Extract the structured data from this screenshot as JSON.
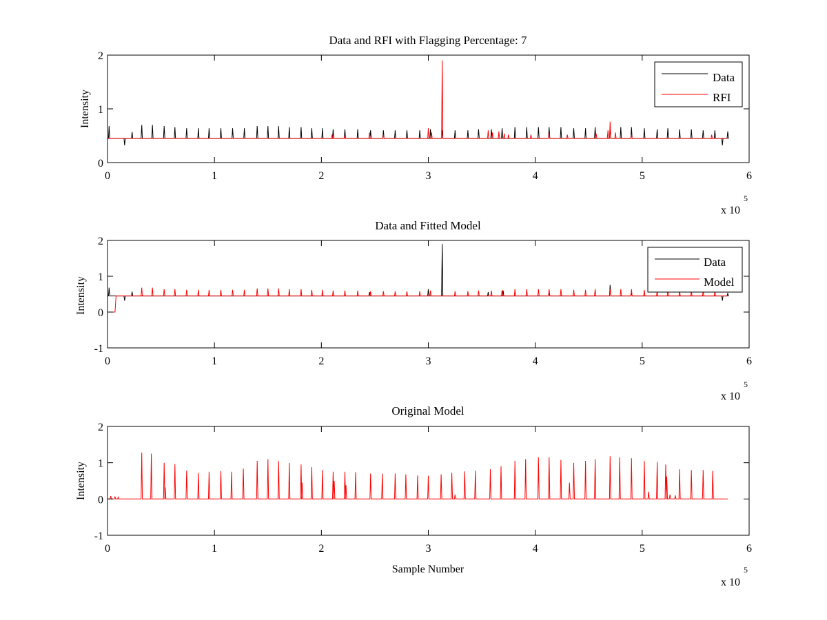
{
  "chart_data": [
    {
      "type": "line",
      "title": "Data and RFI with Flagging Percentage: 7",
      "xlabel": "",
      "ylabel": "Intensity",
      "xlim": [
        0,
        600000
      ],
      "ylim": [
        0,
        2
      ],
      "xticks": [
        "0",
        "1",
        "2",
        "3",
        "4",
        "5",
        "6"
      ],
      "yticks": [
        "0",
        "1",
        "2"
      ],
      "xexponent": {
        "base": "x 10",
        "power": "5"
      },
      "legend": {
        "position": "top-right"
      },
      "baseline": 0.45,
      "series": [
        {
          "name": "Data",
          "color": "#000000",
          "peaks": [
            {
              "x": 1500,
              "y": 0.68
            },
            {
              "x": 16000,
              "y": 0.32
            },
            {
              "x": 23000,
              "y": 0.57
            },
            {
              "x": 32000,
              "y": 0.7
            },
            {
              "x": 42000,
              "y": 0.7
            },
            {
              "x": 53000,
              "y": 0.68
            },
            {
              "x": 63000,
              "y": 0.66
            },
            {
              "x": 74000,
              "y": 0.64
            },
            {
              "x": 85000,
              "y": 0.64
            },
            {
              "x": 95000,
              "y": 0.64
            },
            {
              "x": 106000,
              "y": 0.64
            },
            {
              "x": 117000,
              "y": 0.64
            },
            {
              "x": 128000,
              "y": 0.64
            },
            {
              "x": 140000,
              "y": 0.68
            },
            {
              "x": 150000,
              "y": 0.68
            },
            {
              "x": 160000,
              "y": 0.68
            },
            {
              "x": 170000,
              "y": 0.66
            },
            {
              "x": 181000,
              "y": 0.66
            },
            {
              "x": 191000,
              "y": 0.64
            },
            {
              "x": 201000,
              "y": 0.64
            },
            {
              "x": 211000,
              "y": 0.62
            },
            {
              "x": 222000,
              "y": 0.62
            },
            {
              "x": 234000,
              "y": 0.62
            },
            {
              "x": 246000,
              "y": 0.6
            },
            {
              "x": 258000,
              "y": 0.6
            },
            {
              "x": 269000,
              "y": 0.6
            },
            {
              "x": 280000,
              "y": 0.6
            },
            {
              "x": 292000,
              "y": 0.6
            },
            {
              "x": 302000,
              "y": 0.62
            },
            {
              "x": 313000,
              "y": 0.6
            },
            {
              "x": 325000,
              "y": 0.6
            },
            {
              "x": 337000,
              "y": 0.6
            },
            {
              "x": 347000,
              "y": 0.62
            },
            {
              "x": 359000,
              "y": 0.62
            },
            {
              "x": 369000,
              "y": 0.64
            },
            {
              "x": 381000,
              "y": 0.66
            },
            {
              "x": 392000,
              "y": 0.66
            },
            {
              "x": 403000,
              "y": 0.66
            },
            {
              "x": 413000,
              "y": 0.66
            },
            {
              "x": 424000,
              "y": 0.66
            },
            {
              "x": 436000,
              "y": 0.64
            },
            {
              "x": 447000,
              "y": 0.64
            },
            {
              "x": 456000,
              "y": 0.66
            },
            {
              "x": 470000,
              "y": 0.66
            },
            {
              "x": 480000,
              "y": 0.66
            },
            {
              "x": 490000,
              "y": 0.66
            },
            {
              "x": 502000,
              "y": 0.64
            },
            {
              "x": 514000,
              "y": 0.62
            },
            {
              "x": 524000,
              "y": 0.64
            },
            {
              "x": 535000,
              "y": 0.62
            },
            {
              "x": 546000,
              "y": 0.62
            },
            {
              "x": 557000,
              "y": 0.6
            },
            {
              "x": 568000,
              "y": 0.6
            },
            {
              "x": 575000,
              "y": 0.32
            },
            {
              "x": 580000,
              "y": 0.58
            }
          ]
        },
        {
          "name": "RFI",
          "color": "#ff0000",
          "peaks": [
            {
              "x": 210000,
              "y": 0.52
            },
            {
              "x": 222000,
              "y": 0.5
            },
            {
              "x": 245000,
              "y": 0.56
            },
            {
              "x": 258000,
              "y": 0.52
            },
            {
              "x": 300000,
              "y": 0.64
            },
            {
              "x": 303000,
              "y": 0.56
            },
            {
              "x": 313000,
              "y": 1.9
            },
            {
              "x": 356000,
              "y": 0.6
            },
            {
              "x": 360000,
              "y": 0.56
            },
            {
              "x": 366000,
              "y": 0.58
            },
            {
              "x": 371000,
              "y": 0.54
            },
            {
              "x": 375000,
              "y": 0.52
            },
            {
              "x": 396000,
              "y": 0.52
            },
            {
              "x": 413000,
              "y": 0.54
            },
            {
              "x": 430000,
              "y": 0.52
            },
            {
              "x": 457000,
              "y": 0.54
            },
            {
              "x": 468000,
              "y": 0.6
            },
            {
              "x": 470000,
              "y": 0.76
            },
            {
              "x": 475000,
              "y": 0.56
            },
            {
              "x": 490000,
              "y": 0.52
            },
            {
              "x": 565000,
              "y": 0.52
            }
          ]
        }
      ]
    },
    {
      "type": "line",
      "title": "Data and Fitted Model",
      "xlabel": "",
      "ylabel": "Intensity",
      "xlim": [
        0,
        600000
      ],
      "ylim": [
        -1,
        2
      ],
      "xticks": [
        "0",
        "1",
        "2",
        "3",
        "4",
        "5",
        "6"
      ],
      "yticks": [
        "-1",
        "0",
        "1",
        "2"
      ],
      "xexponent": {
        "base": "x 10",
        "power": "5"
      },
      "legend": {
        "position": "top-right"
      },
      "baseline": 0.45,
      "series": [
        {
          "name": "Data",
          "color": "#000000",
          "peaks": [
            {
              "x": 1500,
              "y": 0.68
            },
            {
              "x": 16000,
              "y": 0.32
            },
            {
              "x": 23000,
              "y": 0.57
            },
            {
              "x": 245000,
              "y": 0.56
            },
            {
              "x": 300000,
              "y": 0.64
            },
            {
              "x": 313000,
              "y": 1.9
            },
            {
              "x": 356000,
              "y": 0.56
            },
            {
              "x": 370000,
              "y": 0.6
            },
            {
              "x": 413000,
              "y": 0.54
            },
            {
              "x": 470000,
              "y": 0.76
            },
            {
              "x": 490000,
              "y": 0.54
            },
            {
              "x": 575000,
              "y": 0.32
            },
            {
              "x": 580000,
              "y": 0.52
            }
          ]
        },
        {
          "name": "Model",
          "color": "#ff0000",
          "start_step": [
            {
              "x": 0,
              "y": 0.0
            },
            {
              "x": 7000,
              "y": 0.0
            },
            {
              "x": 8000,
              "y": 0.45
            }
          ],
          "peaks": [
            {
              "x": 32000,
              "y": 0.68
            },
            {
              "x": 42000,
              "y": 0.68
            },
            {
              "x": 53000,
              "y": 0.64
            },
            {
              "x": 63000,
              "y": 0.64
            },
            {
              "x": 74000,
              "y": 0.62
            },
            {
              "x": 85000,
              "y": 0.62
            },
            {
              "x": 95000,
              "y": 0.62
            },
            {
              "x": 106000,
              "y": 0.62
            },
            {
              "x": 117000,
              "y": 0.62
            },
            {
              "x": 128000,
              "y": 0.62
            },
            {
              "x": 140000,
              "y": 0.66
            },
            {
              "x": 150000,
              "y": 0.66
            },
            {
              "x": 160000,
              "y": 0.66
            },
            {
              "x": 170000,
              "y": 0.64
            },
            {
              "x": 181000,
              "y": 0.64
            },
            {
              "x": 191000,
              "y": 0.62
            },
            {
              "x": 201000,
              "y": 0.62
            },
            {
              "x": 211000,
              "y": 0.6
            },
            {
              "x": 222000,
              "y": 0.6
            },
            {
              "x": 234000,
              "y": 0.6
            },
            {
              "x": 246000,
              "y": 0.58
            },
            {
              "x": 258000,
              "y": 0.58
            },
            {
              "x": 269000,
              "y": 0.58
            },
            {
              "x": 280000,
              "y": 0.58
            },
            {
              "x": 292000,
              "y": 0.58
            },
            {
              "x": 302000,
              "y": 0.6
            },
            {
              "x": 325000,
              "y": 0.58
            },
            {
              "x": 337000,
              "y": 0.58
            },
            {
              "x": 347000,
              "y": 0.6
            },
            {
              "x": 359000,
              "y": 0.6
            },
            {
              "x": 369000,
              "y": 0.62
            },
            {
              "x": 381000,
              "y": 0.64
            },
            {
              "x": 392000,
              "y": 0.64
            },
            {
              "x": 403000,
              "y": 0.64
            },
            {
              "x": 413000,
              "y": 0.64
            },
            {
              "x": 424000,
              "y": 0.64
            },
            {
              "x": 436000,
              "y": 0.62
            },
            {
              "x": 447000,
              "y": 0.62
            },
            {
              "x": 456000,
              "y": 0.64
            },
            {
              "x": 470000,
              "y": 0.64
            },
            {
              "x": 480000,
              "y": 0.64
            },
            {
              "x": 490000,
              "y": 0.64
            },
            {
              "x": 502000,
              "y": 0.62
            },
            {
              "x": 514000,
              "y": 0.6
            },
            {
              "x": 524000,
              "y": 0.62
            },
            {
              "x": 535000,
              "y": 0.6
            },
            {
              "x": 546000,
              "y": 0.6
            },
            {
              "x": 557000,
              "y": 0.58
            },
            {
              "x": 568000,
              "y": 0.58
            }
          ]
        }
      ]
    },
    {
      "type": "line",
      "title": "Original Model",
      "xlabel": "Sample Number",
      "ylabel": "Intensity",
      "xlim": [
        0,
        600000
      ],
      "ylim": [
        -1,
        2
      ],
      "xticks": [
        "0",
        "1",
        "2",
        "3",
        "4",
        "5",
        "6"
      ],
      "yticks": [
        "-1",
        "0",
        "1",
        "2"
      ],
      "xexponent": {
        "base": "x 10",
        "power": "5"
      },
      "baseline": 0.0,
      "series": [
        {
          "color": "#ff0000",
          "peaks": [
            {
              "x": 3000,
              "y": 0.08
            },
            {
              "x": 7000,
              "y": 0.06
            },
            {
              "x": 10000,
              "y": 0.05
            },
            {
              "x": 32000,
              "y": 1.28
            },
            {
              "x": 41000,
              "y": 1.25
            },
            {
              "x": 53000,
              "y": 1.0
            },
            {
              "x": 54000,
              "y": 0.32
            },
            {
              "x": 63000,
              "y": 0.96
            },
            {
              "x": 74000,
              "y": 0.78
            },
            {
              "x": 85000,
              "y": 0.72
            },
            {
              "x": 95000,
              "y": 0.75
            },
            {
              "x": 106000,
              "y": 0.77
            },
            {
              "x": 116000,
              "y": 0.75
            },
            {
              "x": 127000,
              "y": 0.84
            },
            {
              "x": 140000,
              "y": 1.05
            },
            {
              "x": 150000,
              "y": 1.1
            },
            {
              "x": 160000,
              "y": 1.05
            },
            {
              "x": 170000,
              "y": 1.0
            },
            {
              "x": 181000,
              "y": 0.95
            },
            {
              "x": 182000,
              "y": 0.45
            },
            {
              "x": 191000,
              "y": 0.88
            },
            {
              "x": 201000,
              "y": 0.8
            },
            {
              "x": 211000,
              "y": 0.75
            },
            {
              "x": 212000,
              "y": 0.5
            },
            {
              "x": 222000,
              "y": 0.75
            },
            {
              "x": 223000,
              "y": 0.38
            },
            {
              "x": 232000,
              "y": 0.74
            },
            {
              "x": 246000,
              "y": 0.7
            },
            {
              "x": 257000,
              "y": 0.7
            },
            {
              "x": 269000,
              "y": 0.7
            },
            {
              "x": 279000,
              "y": 0.68
            },
            {
              "x": 290000,
              "y": 0.65
            },
            {
              "x": 300000,
              "y": 0.64
            },
            {
              "x": 312000,
              "y": 0.68
            },
            {
              "x": 322000,
              "y": 0.72
            },
            {
              "x": 325000,
              "y": 0.12
            },
            {
              "x": 334000,
              "y": 0.76
            },
            {
              "x": 344000,
              "y": 0.78
            },
            {
              "x": 358000,
              "y": 0.82
            },
            {
              "x": 368000,
              "y": 0.9
            },
            {
              "x": 381000,
              "y": 1.05
            },
            {
              "x": 391000,
              "y": 1.1
            },
            {
              "x": 403000,
              "y": 1.15
            },
            {
              "x": 413000,
              "y": 1.15
            },
            {
              "x": 424000,
              "y": 1.08
            },
            {
              "x": 432000,
              "y": 0.45
            },
            {
              "x": 436000,
              "y": 1.0
            },
            {
              "x": 447000,
              "y": 1.05
            },
            {
              "x": 456000,
              "y": 1.1
            },
            {
              "x": 470000,
              "y": 1.18
            },
            {
              "x": 479000,
              "y": 1.15
            },
            {
              "x": 490000,
              "y": 1.12
            },
            {
              "x": 502000,
              "y": 1.05
            },
            {
              "x": 506000,
              "y": 0.2
            },
            {
              "x": 514000,
              "y": 1.02
            },
            {
              "x": 522000,
              "y": 0.95
            },
            {
              "x": 523000,
              "y": 0.62
            },
            {
              "x": 526000,
              "y": 0.12
            },
            {
              "x": 531000,
              "y": 0.1
            },
            {
              "x": 535000,
              "y": 0.82
            },
            {
              "x": 546000,
              "y": 0.8
            },
            {
              "x": 557000,
              "y": 0.8
            },
            {
              "x": 566000,
              "y": 0.78
            }
          ],
          "x_end": 580000
        }
      ]
    }
  ]
}
